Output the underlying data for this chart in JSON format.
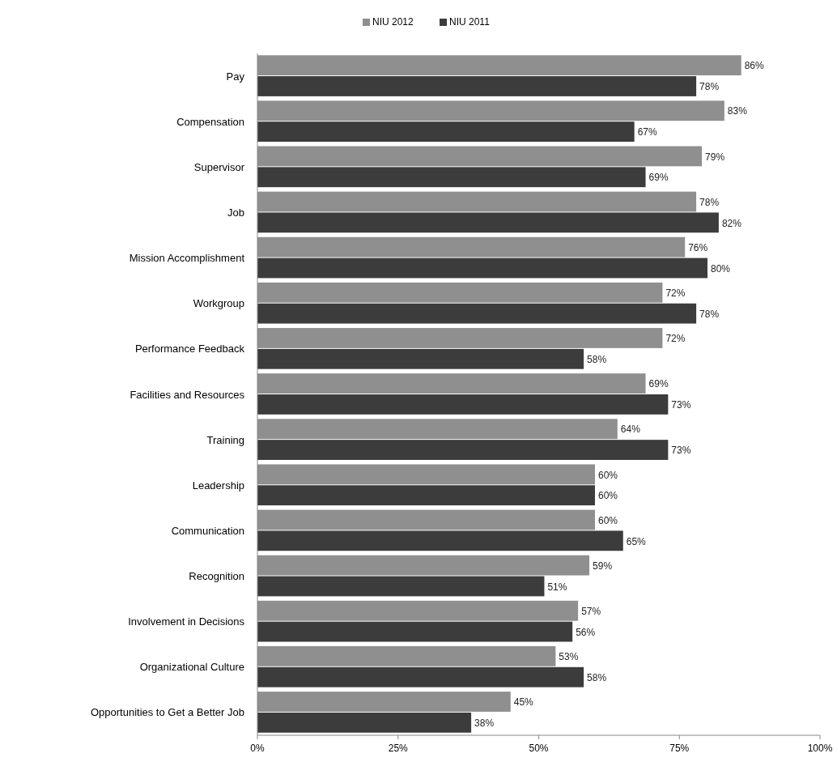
{
  "chart_data": {
    "type": "bar",
    "orientation": "horizontal",
    "categories": [
      "Pay",
      "Compensation",
      "Supervisor",
      "Job",
      "Mission Accomplishment",
      "Workgroup",
      "Performance Feedback",
      "Facilities and Resources",
      "Training",
      "Leadership",
      "Communication",
      "Recognition",
      "Involvement in Decisions",
      "Organizational Culture",
      "Opportunities to Get a Better Job"
    ],
    "series": [
      {
        "name": "NIU 2012",
        "color": "#8f8f8f",
        "values": [
          86,
          83,
          79,
          78,
          76,
          72,
          72,
          69,
          64,
          60,
          60,
          59,
          57,
          53,
          45
        ],
        "value_labels": [
          "86%",
          "83%",
          "79%",
          "78%",
          "76%",
          "72%",
          "72%",
          "69%",
          "64%",
          "60%",
          "60%",
          "59%",
          "57%",
          "53%",
          "45%"
        ]
      },
      {
        "name": "NIU 2011",
        "color": "#3c3c3c",
        "values": [
          78,
          67,
          69,
          82,
          80,
          78,
          58,
          73,
          73,
          60,
          65,
          51,
          56,
          58,
          38
        ],
        "value_labels": [
          "78%",
          "67%",
          "69%",
          "82%",
          "80%",
          "78%",
          "58%",
          "73%",
          "73%",
          "60%",
          "65%",
          "51%",
          "56%",
          "58%",
          "38%"
        ]
      }
    ],
    "xlim": [
      0,
      100
    ],
    "xticks": [
      {
        "value": 0,
        "label": "0%"
      },
      {
        "value": 25,
        "label": "25%"
      },
      {
        "value": 50,
        "label": "50%"
      },
      {
        "value": 75,
        "label": "75%"
      },
      {
        "value": 100,
        "label": "100%"
      }
    ],
    "legend": "top"
  }
}
